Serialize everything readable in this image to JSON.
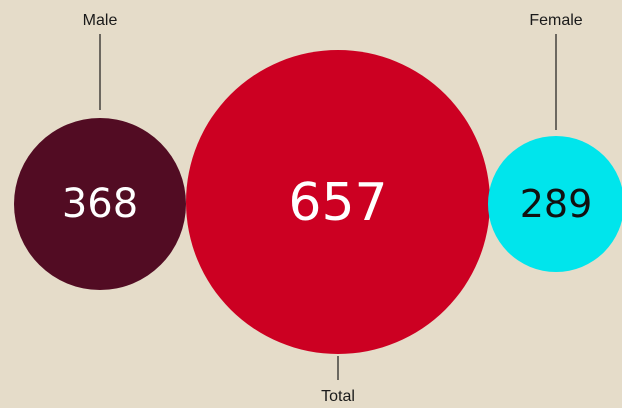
{
  "chart_data": {
    "type": "bubble",
    "title": "",
    "series": [
      {
        "name": "Male",
        "value": 368,
        "color": "#520c23",
        "text_color": "#ffffff"
      },
      {
        "name": "Total",
        "value": 657,
        "color": "#cc0022",
        "text_color": "#ffffff"
      },
      {
        "name": "Female",
        "value": 289,
        "color": "#00e5ec",
        "text_color": "#111111"
      }
    ]
  },
  "page": {
    "background": "#e5dcc9"
  }
}
